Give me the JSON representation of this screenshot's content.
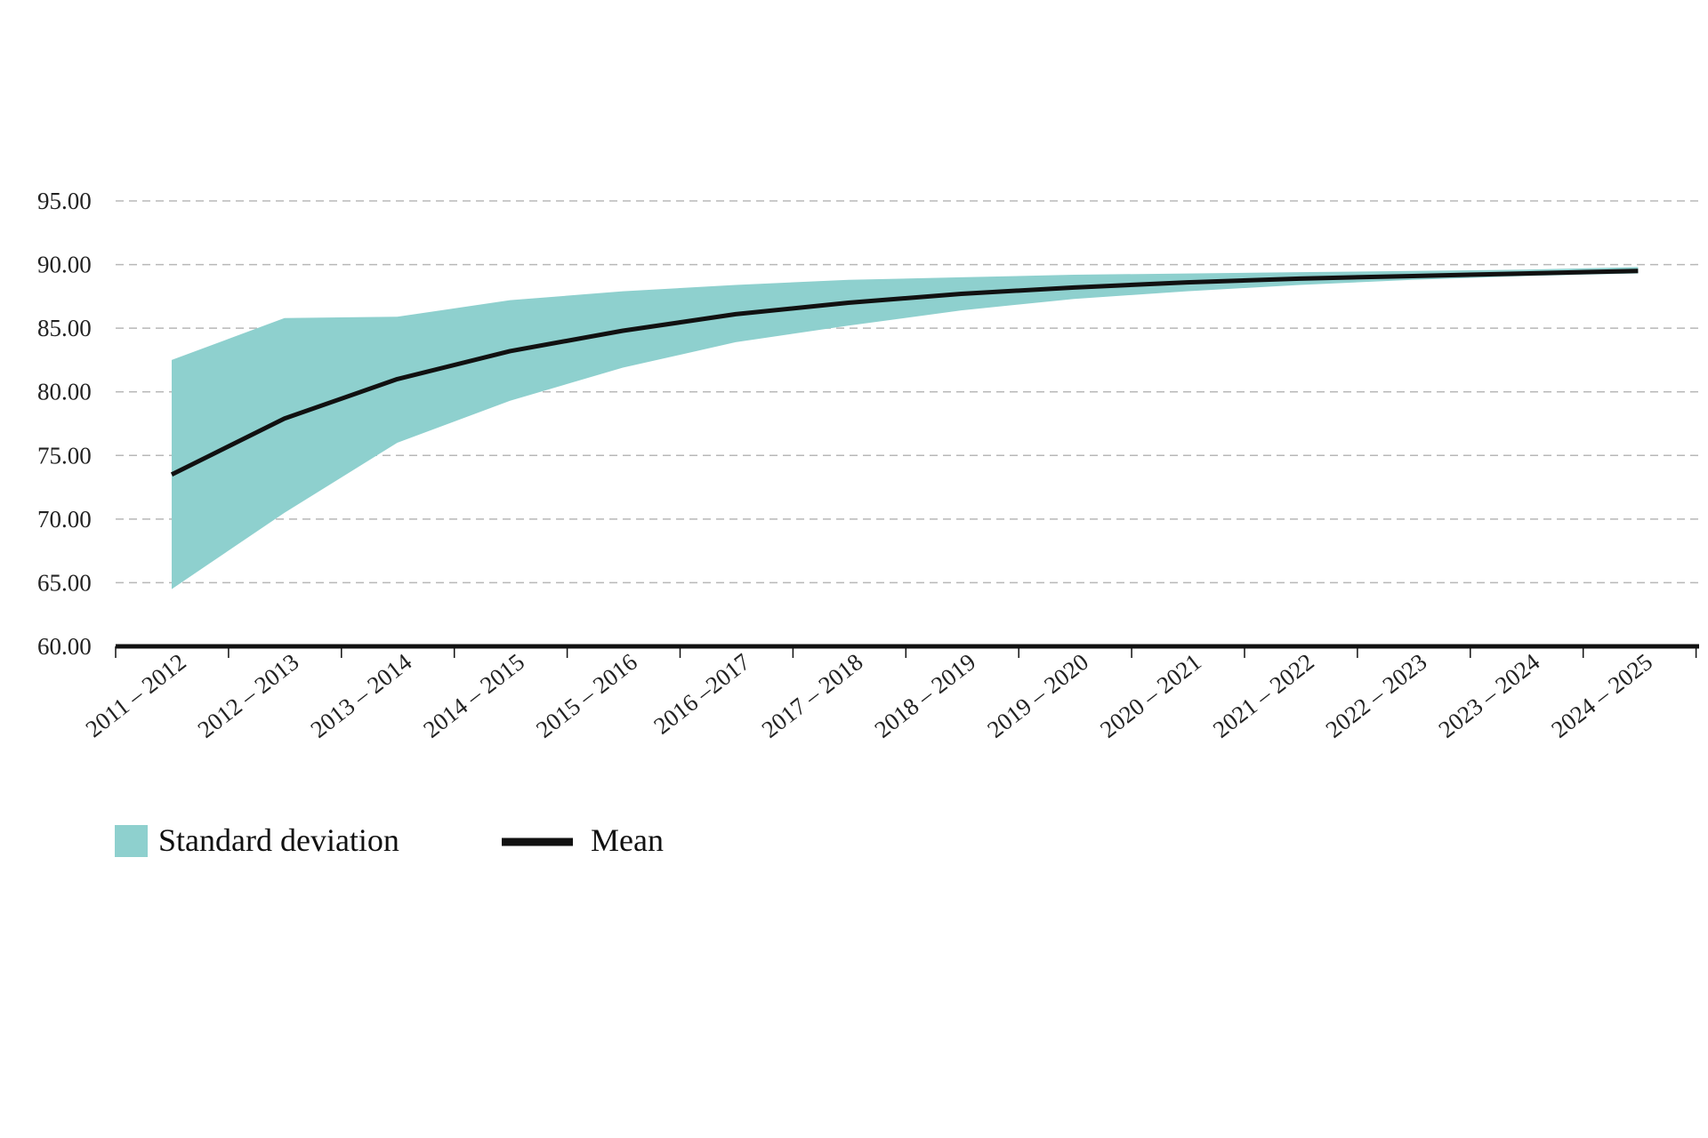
{
  "chart_data": {
    "type": "area",
    "categories": [
      "2011 – 2012",
      "2012 – 2013",
      "2013 – 2014",
      "2014 – 2015",
      "2015 – 2016",
      "2016 –2017",
      "2017 – 2018",
      "2018 – 2019",
      "2019 – 2020",
      "2020 – 2021",
      "2021 – 2022",
      "2022 – 2023",
      "2023 – 2024",
      "2024 – 2025"
    ],
    "series": [
      {
        "name": "Mean",
        "values": [
          73.5,
          77.9,
          81.0,
          83.2,
          84.8,
          86.1,
          87.0,
          87.7,
          88.2,
          88.6,
          88.9,
          89.1,
          89.3,
          89.5
        ]
      },
      {
        "name": "Standard deviation",
        "upper": [
          82.5,
          85.8,
          85.9,
          87.2,
          87.9,
          88.4,
          88.8,
          89.0,
          89.2,
          89.3,
          89.4,
          89.5,
          89.6,
          89.8
        ],
        "lower": [
          64.5,
          70.5,
          76.0,
          79.3,
          81.9,
          83.9,
          85.2,
          86.4,
          87.3,
          87.9,
          88.4,
          88.8,
          89.1,
          89.3
        ]
      }
    ],
    "ylim": [
      60,
      95
    ],
    "yticks": [
      "60.00",
      "65.00",
      "70.00",
      "75.00",
      "80.00",
      "85.00",
      "90.00",
      "95.00"
    ],
    "grid": true,
    "legend_position": "bottom-left",
    "colors": {
      "band": "#8ed0ce",
      "line": "#111111",
      "grid": "#b8b8b8",
      "axis": "#111111"
    }
  },
  "legend": {
    "band_label": "Standard deviation",
    "line_label": "Mean"
  }
}
